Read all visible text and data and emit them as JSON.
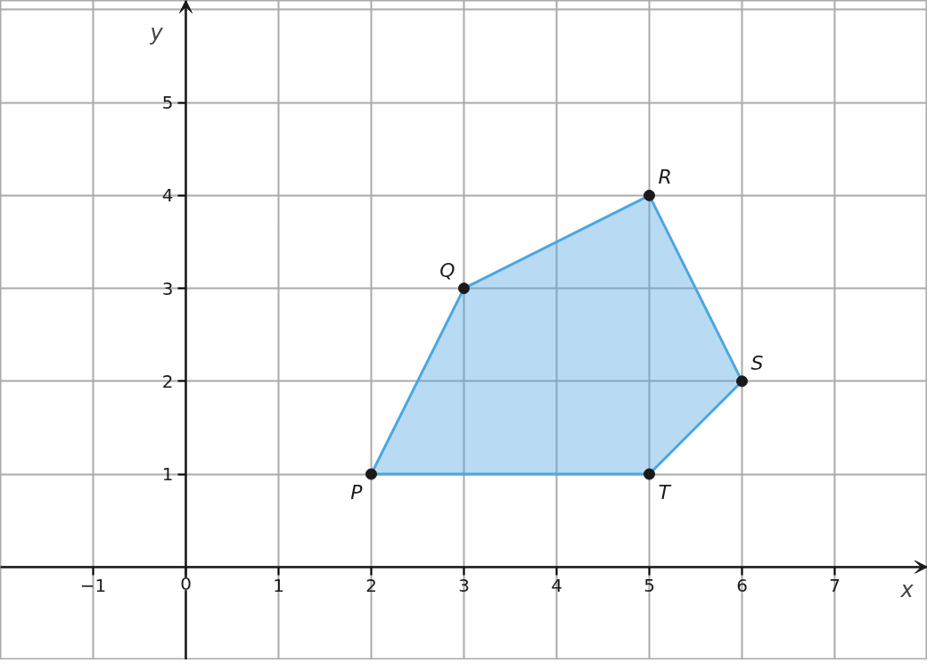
{
  "chart_data": {
    "type": "scatter",
    "xlabel": "x",
    "ylabel": "y",
    "xlim": [
      -2,
      8
    ],
    "ylim": [
      -1,
      6.1
    ],
    "xticks": [
      -1,
      0,
      1,
      2,
      3,
      4,
      5,
      6,
      7
    ],
    "yticks": [
      1,
      2,
      3,
      4,
      5
    ],
    "grid": true,
    "series": [
      {
        "type": "area",
        "color": "#4da6e0",
        "x": [
          2,
          3,
          5,
          6,
          5,
          2
        ],
        "values": [
          1,
          3,
          4,
          2,
          1,
          1
        ]
      },
      {
        "color": "#1a1a1a",
        "marker": "circle",
        "x": [
          2,
          3,
          5,
          6,
          5
        ],
        "values": [
          1,
          3,
          4,
          2,
          1
        ]
      }
    ],
    "annotations": [
      {
        "text": "P",
        "x": 2,
        "y": 1
      },
      {
        "text": "Q",
        "x": 3,
        "y": 3
      },
      {
        "text": "R",
        "x": 5,
        "y": 4
      },
      {
        "text": "S",
        "x": 6,
        "y": 2
      },
      {
        "text": "T",
        "x": 5,
        "y": 1
      }
    ]
  }
}
